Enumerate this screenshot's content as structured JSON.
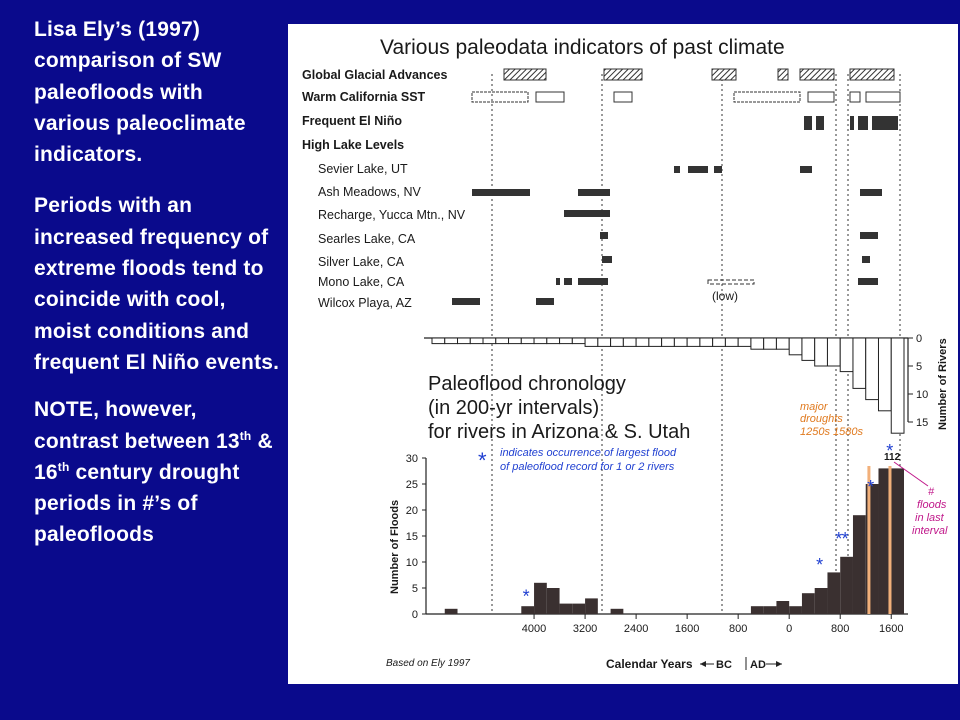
{
  "left_text": {
    "intro": "Lisa Ely’s (1997) comparison of SW paleofloods with various paleoclimate indicators.",
    "periods": "Periods with an increased frequency of extreme floods tend to coincide with cool, moist conditions and frequent El Niño events.",
    "note_before_13": "NOTE, however, contrast between 13",
    "sup_13": "th",
    "note_mid": " & 16",
    "sup_16": "th",
    "note_after": " century drought periods in #’s of paleofloods"
  },
  "figure": {
    "title": "Various paleodata indicators of past climate",
    "indicator_rows": [
      "Global Glacial Advances",
      "Warm California SST",
      "Frequent El Niño",
      "High Lake Levels"
    ],
    "lake_rows": [
      "Sevier Lake, UT",
      "Ash Meadows, NV",
      "Recharge, Yucca Mtn., NV",
      "Searles Lake, CA",
      "Silver Lake, CA",
      "Mono Lake, CA",
      "Wilcox Playa, AZ"
    ],
    "low_label": "(low)",
    "chronology_title": [
      "Paleoflood chronology",
      "(in 200-yr intervals)",
      "for rivers in Arizona & S. Utah"
    ],
    "asterisk_note": [
      "indicates occurrence of largest flood",
      "of paleoflood record for 1 or 2 rivers"
    ],
    "droughts_note": [
      "major",
      "droughts",
      "1250s  1580s"
    ],
    "floods_last_note": [
      "#",
      "floods",
      "in last",
      "interval"
    ],
    "last_interval_value": "112",
    "source": "Based on Ely 1997",
    "bc_ad": "BC",
    "ad": "AD"
  },
  "chart_data": [
    {
      "type": "bar",
      "title": "",
      "xlabel": "",
      "ylabel": "Number of Rivers",
      "ylim": [
        0,
        15
      ],
      "y_ticks": [
        0,
        5,
        10,
        15
      ],
      "orientation": "downward",
      "x": [
        -5500,
        -5300,
        -5100,
        -4900,
        -4700,
        -4500,
        -4300,
        -4100,
        -3900,
        -3700,
        -3500,
        -3300,
        -3100,
        -2900,
        -2700,
        -2500,
        -2300,
        -2100,
        -1900,
        -1700,
        -1500,
        -1300,
        -1100,
        -900,
        -700,
        -500,
        -300,
        -100,
        100,
        300,
        500,
        700,
        900,
        1100,
        1300,
        1500,
        1700
      ],
      "values": [
        1,
        1,
        1,
        1,
        1,
        1,
        1,
        1,
        1,
        1,
        1,
        1,
        1.5,
        1.5,
        1.5,
        1.5,
        1.5,
        1.5,
        1.5,
        1.5,
        1.5,
        1.5,
        1.5,
        1.5,
        1.5,
        2,
        2,
        2,
        3,
        4,
        5,
        5,
        6,
        9,
        11,
        13,
        17
      ]
    },
    {
      "type": "bar",
      "title": "",
      "xlabel": "Calendar Years",
      "ylabel": "Number of Floods",
      "ylim": [
        0,
        30
      ],
      "y_ticks": [
        0,
        5,
        10,
        15,
        20,
        25,
        30
      ],
      "x_tick_labels": [
        "4000",
        "3200",
        "2400",
        "1600",
        "800",
        "0",
        "800",
        "1600"
      ],
      "x": [
        -5300,
        -4900,
        -4300,
        -4100,
        -3900,
        -3700,
        -3500,
        -3300,
        -3100,
        -2900,
        -2700,
        -2500,
        -2300,
        -2100,
        -1900,
        -1700,
        -1500,
        -1300,
        -1100,
        -900,
        -700,
        -500,
        -300,
        -100,
        100,
        300,
        500,
        700,
        900,
        1100,
        1300,
        1500,
        1700
      ],
      "values": [
        1,
        0,
        0,
        1.5,
        6,
        5,
        2,
        2,
        3,
        0,
        1,
        0,
        0,
        0,
        0,
        0,
        0,
        0,
        0,
        0,
        0,
        1.5,
        1.5,
        2.5,
        1.5,
        4,
        5,
        8,
        11,
        19,
        25,
        28,
        28
      ],
      "largest_flood_markers": [
        -4100,
        500,
        800,
        900,
        1300,
        1600
      ],
      "drought_markers": [
        1250,
        1580
      ]
    }
  ]
}
